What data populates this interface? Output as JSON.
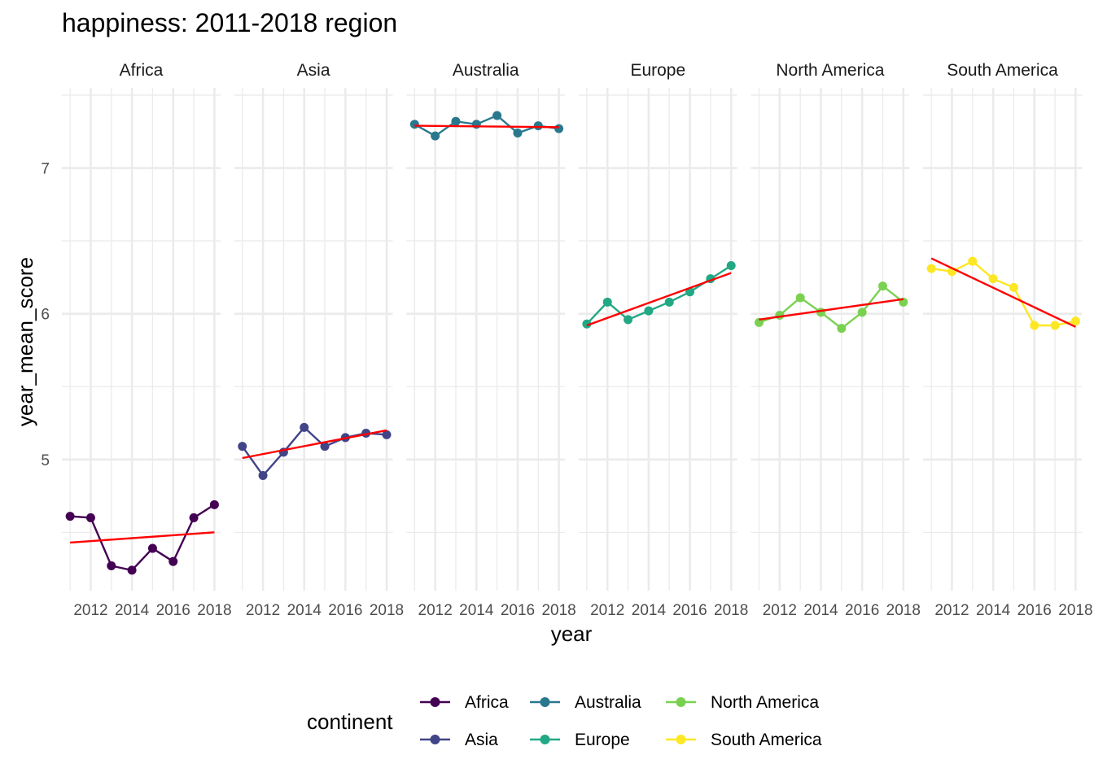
{
  "chart_data": {
    "type": "line",
    "title": "happiness: 2011-2018 region",
    "xlabel": "year",
    "ylabel": "year_mean_score",
    "x": [
      2011,
      2012,
      2013,
      2014,
      2015,
      2016,
      2017,
      2018
    ],
    "x_tick_labels": [
      "2012",
      "2014",
      "2016",
      "2018"
    ],
    "y_tick_labels": [
      "5",
      "6",
      "7"
    ],
    "ylim": [
      4.1,
      7.55
    ],
    "xlim": [
      2010.6,
      2018.3
    ],
    "facets": [
      "Africa",
      "Asia",
      "Australia",
      "Europe",
      "North America",
      "South America"
    ],
    "legend_title": "continent",
    "legend_position": "bottom",
    "grid": true,
    "trend_color": "#ff0000",
    "series": [
      {
        "name": "Africa",
        "color": "#440154",
        "values": [
          4.61,
          4.6,
          4.27,
          4.24,
          4.39,
          4.3,
          4.6,
          4.69
        ],
        "trend": [
          4.43,
          4.5
        ]
      },
      {
        "name": "Asia",
        "color": "#414487",
        "values": [
          5.09,
          4.89,
          5.05,
          5.22,
          5.09,
          5.15,
          5.18,
          5.17
        ],
        "trend": [
          5.01,
          5.2
        ]
      },
      {
        "name": "Australia",
        "color": "#2a788e",
        "values": [
          7.3,
          7.22,
          7.32,
          7.3,
          7.36,
          7.24,
          7.29,
          7.27
        ],
        "trend": [
          7.29,
          7.28
        ]
      },
      {
        "name": "Europe",
        "color": "#22a884",
        "values": [
          5.93,
          6.08,
          5.96,
          6.02,
          6.08,
          6.15,
          6.24,
          6.33
        ],
        "trend": [
          5.92,
          6.28
        ]
      },
      {
        "name": "North America",
        "color": "#7ad151",
        "values": [
          5.94,
          5.99,
          6.11,
          6.01,
          5.9,
          6.01,
          6.19,
          6.08
        ],
        "trend": [
          5.96,
          6.1
        ]
      },
      {
        "name": "South America",
        "color": "#fde725",
        "values": [
          6.31,
          6.29,
          6.36,
          6.24,
          6.18,
          5.92,
          5.92,
          5.95
        ],
        "trend": [
          6.38,
          5.91
        ]
      }
    ]
  }
}
